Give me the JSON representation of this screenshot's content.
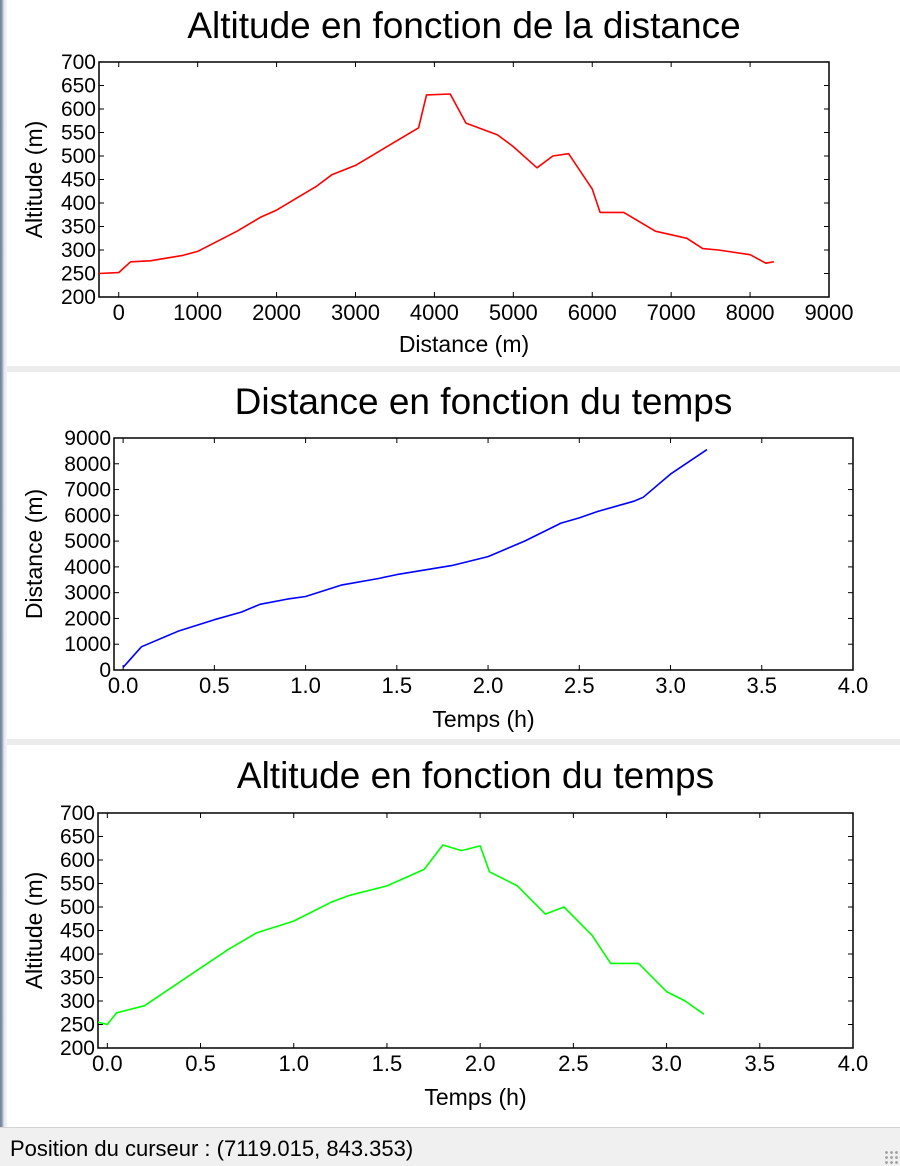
{
  "chart_data": [
    {
      "type": "line",
      "title": "Altitude en fonction de la distance",
      "xlabel": "Distance (m)",
      "ylabel": "Altitude (m)",
      "xlim": [
        -250,
        9000
      ],
      "ylim": [
        200,
        700
      ],
      "xticks": [
        0,
        1000,
        2000,
        3000,
        4000,
        5000,
        6000,
        7000,
        8000,
        9000
      ],
      "yticks": [
        200,
        250,
        300,
        350,
        400,
        450,
        500,
        550,
        600,
        650,
        700
      ],
      "grid": false,
      "color": "#ff0000",
      "series": [
        {
          "x": [
            -250,
            0,
            150,
            400,
            800,
            1000,
            1500,
            1800,
            2000,
            2500,
            2700,
            3000,
            3300,
            3800,
            3900,
            4200,
            4400,
            4800,
            5000,
            5300,
            5500,
            5700,
            6000,
            6100,
            6400,
            6800,
            7200,
            7400,
            7600,
            8000,
            8200,
            8300
          ],
          "y": [
            250,
            252,
            275,
            277,
            288,
            297,
            340,
            370,
            385,
            435,
            460,
            480,
            510,
            560,
            630,
            632,
            570,
            545,
            520,
            475,
            500,
            505,
            430,
            380,
            380,
            340,
            325,
            303,
            300,
            290,
            272,
            275
          ]
        }
      ]
    },
    {
      "type": "line",
      "title": "Distance en fonction du temps",
      "xlabel": "Temps (h)",
      "ylabel": "Distance (m)",
      "xlim": [
        -0.05,
        4.0
      ],
      "ylim": [
        0,
        9000
      ],
      "xticks": [
        0.0,
        0.5,
        1.0,
        1.5,
        2.0,
        2.5,
        3.0,
        3.5,
        4.0
      ],
      "yticks": [
        0,
        1000,
        2000,
        3000,
        4000,
        5000,
        6000,
        7000,
        8000,
        9000
      ],
      "grid": false,
      "color": "#0000ff",
      "series": [
        {
          "x": [
            0.0,
            0.1,
            0.3,
            0.5,
            0.65,
            0.75,
            0.9,
            1.0,
            1.2,
            1.4,
            1.5,
            1.8,
            2.0,
            2.2,
            2.4,
            2.5,
            2.6,
            2.8,
            2.85,
            3.0,
            3.2
          ],
          "y": [
            100,
            900,
            1500,
            1950,
            2250,
            2550,
            2750,
            2850,
            3300,
            3550,
            3700,
            4050,
            4400,
            5000,
            5700,
            5900,
            6150,
            6550,
            6700,
            7600,
            8550
          ]
        }
      ]
    },
    {
      "type": "line",
      "title": "Altitude en fonction du temps",
      "xlabel": "Temps (h)",
      "ylabel": "Altitude (m)",
      "xlim": [
        -0.05,
        4.0
      ],
      "ylim": [
        200,
        700
      ],
      "xticks": [
        0.0,
        0.5,
        1.0,
        1.5,
        2.0,
        2.5,
        3.0,
        3.5,
        4.0
      ],
      "yticks": [
        200,
        250,
        300,
        350,
        400,
        450,
        500,
        550,
        600,
        650,
        700
      ],
      "grid": false,
      "color": "#00ff00",
      "series": [
        {
          "x": [
            -0.05,
            0.0,
            0.05,
            0.2,
            0.5,
            0.65,
            0.8,
            1.0,
            1.2,
            1.3,
            1.5,
            1.7,
            1.8,
            1.9,
            2.0,
            2.05,
            2.2,
            2.35,
            2.45,
            2.6,
            2.7,
            2.85,
            3.0,
            3.1,
            3.2
          ],
          "y": [
            255,
            250,
            275,
            290,
            370,
            410,
            445,
            470,
            510,
            525,
            545,
            580,
            632,
            620,
            630,
            575,
            545,
            485,
            500,
            440,
            380,
            380,
            320,
            300,
            272
          ]
        }
      ]
    }
  ],
  "status": {
    "label": "Position du curseur :",
    "value": "(7119.015, 843.353)"
  }
}
